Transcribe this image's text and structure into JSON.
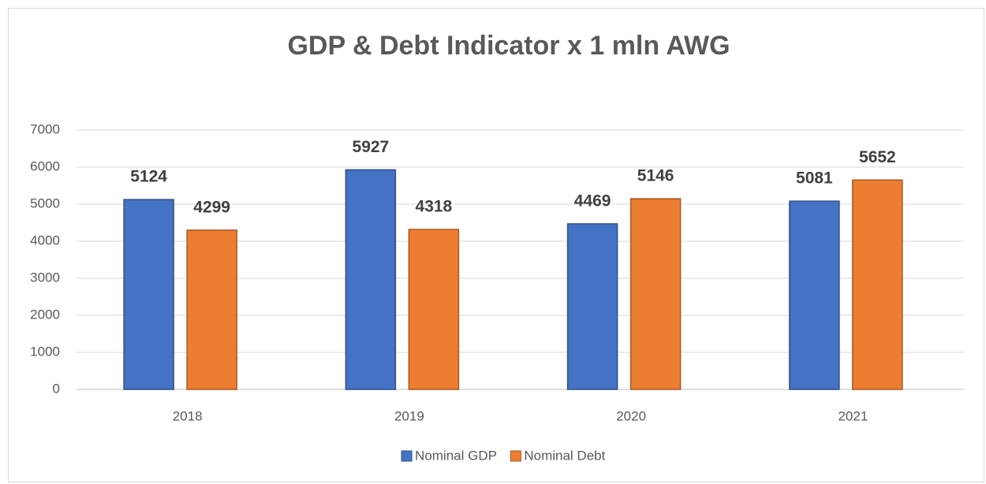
{
  "chart_data": {
    "type": "bar",
    "title": "GDP & Debt Indicator x 1 mln AWG",
    "categories": [
      "2018",
      "2019",
      "2020",
      "2021"
    ],
    "series": [
      {
        "name": "Nominal GDP",
        "color": "#4472c4",
        "values": [
          5124,
          5927,
          4469,
          5081
        ]
      },
      {
        "name": "Nominal Debt",
        "color": "#ed7d31",
        "values": [
          4299,
          4318,
          5146,
          5652
        ]
      }
    ],
    "ylim": [
      0,
      7000
    ],
    "yticks": [
      0,
      1000,
      2000,
      3000,
      4000,
      5000,
      6000,
      7000
    ],
    "grid": true,
    "legend": "bottom"
  }
}
